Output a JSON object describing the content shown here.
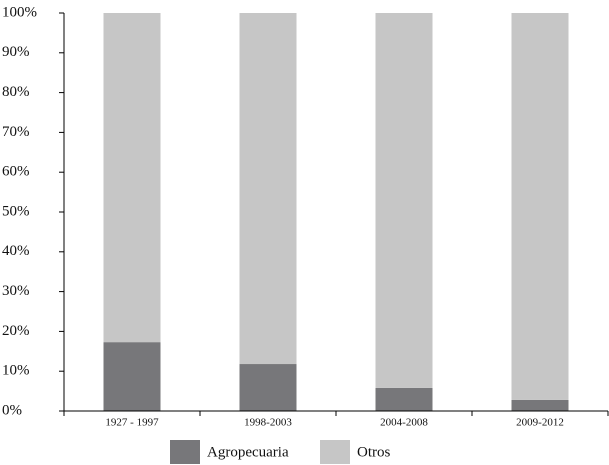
{
  "chart_data": {
    "type": "stacked_bar",
    "categories": [
      "1927 - 1997",
      "1998-2003",
      "2004-2008",
      "2009-2012"
    ],
    "series": [
      {
        "name": "Agropecuaria",
        "color": "#77777a",
        "values": [
          17.3,
          11.8,
          5.8,
          2.8
        ]
      },
      {
        "name": "Otros",
        "color": "#c6c6c6",
        "values": [
          82.7,
          88.2,
          94.2,
          97.2
        ]
      }
    ],
    "ylim": [
      0,
      100
    ],
    "yticks": [
      {
        "value": 0,
        "label": "0%"
      },
      {
        "value": 10,
        "label": "10%"
      },
      {
        "value": 20,
        "label": "20%"
      },
      {
        "value": 30,
        "label": "30%"
      },
      {
        "value": 40,
        "label": "40%"
      },
      {
        "value": 50,
        "label": "50%"
      },
      {
        "value": 60,
        "label": "60%"
      },
      {
        "value": 70,
        "label": "70%"
      },
      {
        "value": 80,
        "label": "80%"
      },
      {
        "value": 90,
        "label": "90%"
      },
      {
        "value": 100,
        "label": "100%"
      }
    ]
  }
}
